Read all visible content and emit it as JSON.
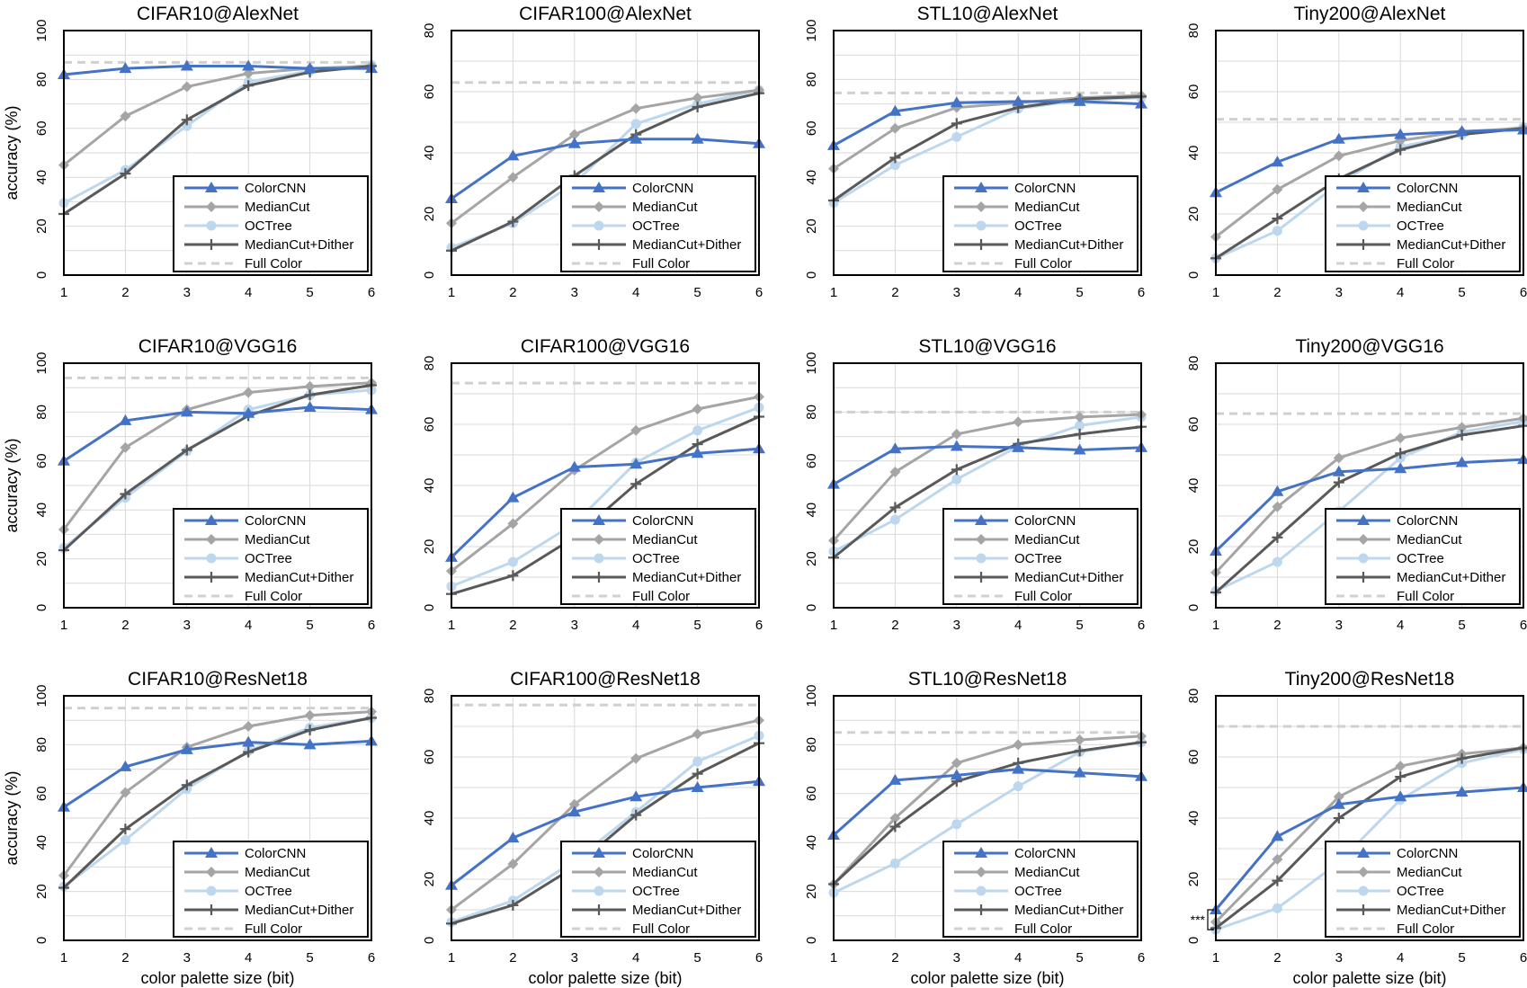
{
  "colors": {
    "ColorCNN": "#4472c4",
    "MedianCut": "#a5a5a5",
    "OCTree": "#bdd7ee",
    "MedianCutDither": "#595959",
    "FullColor": "#d0d0d0"
  },
  "x_axis_label": "color palette size (bit)",
  "y_axis_label": "accuracy (%)",
  "annotation": "***",
  "chart_data": [
    {
      "type": "line",
      "title": "CIFAR10@AlexNet",
      "xlabel": "",
      "ylabel": "accuracy (%)",
      "x": [
        1,
        2,
        3,
        4,
        5,
        6
      ],
      "ylim": [
        0,
        100
      ],
      "yticks": [
        0,
        20,
        40,
        60,
        80,
        100
      ],
      "legend": "bottom-right",
      "series": [
        {
          "name": "ColorCNN",
          "values": [
            82,
            84.5,
            85.5,
            85.5,
            84.5,
            84.5
          ]
        },
        {
          "name": "MedianCut",
          "values": [
            45,
            65,
            77,
            82.5,
            84.5,
            85.5
          ]
        },
        {
          "name": "OCTree",
          "values": [
            29.5,
            43,
            61,
            79,
            83.5,
            86
          ]
        },
        {
          "name": "MedianCut+Dither",
          "values": [
            25,
            41.5,
            63.5,
            77.5,
            83,
            85.5
          ]
        },
        {
          "name": "Full Color",
          "values": [
            87,
            87,
            87,
            87,
            87,
            87
          ]
        }
      ]
    },
    {
      "type": "line",
      "title": "CIFAR100@AlexNet",
      "xlabel": "",
      "ylabel": "",
      "x": [
        1,
        2,
        3,
        4,
        5,
        6
      ],
      "ylim": [
        0,
        80
      ],
      "yticks": [
        0,
        20,
        40,
        60,
        80
      ],
      "legend": "bottom-right",
      "series": [
        {
          "name": "ColorCNN",
          "values": [
            25,
            39,
            43,
            44.5,
            44.5,
            43
          ]
        },
        {
          "name": "MedianCut",
          "values": [
            17,
            32,
            46,
            54.5,
            58,
            60.5
          ]
        },
        {
          "name": "OCTree",
          "values": [
            9,
            17,
            30,
            49.5,
            56,
            60.5
          ]
        },
        {
          "name": "MedianCut+Dither",
          "values": [
            8,
            17.5,
            32.5,
            46,
            55,
            59.5
          ]
        },
        {
          "name": "Full Color",
          "values": [
            63,
            63,
            63,
            63,
            63,
            63
          ]
        }
      ]
    },
    {
      "type": "line",
      "title": "STL10@AlexNet",
      "xlabel": "",
      "ylabel": "",
      "x": [
        1,
        2,
        3,
        4,
        5,
        6
      ],
      "ylim": [
        0,
        100
      ],
      "yticks": [
        0,
        20,
        40,
        60,
        80,
        100
      ],
      "legend": "bottom-right",
      "series": [
        {
          "name": "ColorCNN",
          "values": [
            53,
            67,
            70.5,
            71,
            71,
            70
          ]
        },
        {
          "name": "MedianCut",
          "values": [
            43.5,
            60,
            68.5,
            70.5,
            72.5,
            73.5
          ]
        },
        {
          "name": "OCTree",
          "values": [
            29.5,
            45,
            56.5,
            68,
            71.5,
            72.5
          ]
        },
        {
          "name": "MedianCut+Dither",
          "values": [
            30.5,
            48,
            62,
            68.5,
            72,
            73
          ]
        },
        {
          "name": "Full Color",
          "values": [
            74.5,
            74.5,
            74.5,
            74.5,
            74.5,
            74.5
          ]
        }
      ]
    },
    {
      "type": "line",
      "title": "Tiny200@AlexNet",
      "xlabel": "",
      "ylabel": "",
      "x": [
        1,
        2,
        3,
        4,
        5,
        6
      ],
      "ylim": [
        0,
        80
      ],
      "yticks": [
        0,
        20,
        40,
        60,
        80
      ],
      "legend": "bottom-right",
      "series": [
        {
          "name": "ColorCNN",
          "values": [
            27,
            37,
            44.5,
            46,
            47,
            47.5
          ]
        },
        {
          "name": "MedianCut",
          "values": [
            12.5,
            28,
            39,
            44,
            47,
            48
          ]
        },
        {
          "name": "OCTree",
          "values": [
            5.5,
            14.5,
            30,
            42,
            46,
            48.5
          ]
        },
        {
          "name": "MedianCut+Dither",
          "values": [
            5.5,
            18.5,
            31.5,
            41,
            46,
            48
          ]
        },
        {
          "name": "Full Color",
          "values": [
            51,
            51,
            51,
            51,
            51,
            51
          ]
        }
      ]
    },
    {
      "type": "line",
      "title": "CIFAR10@VGG16",
      "xlabel": "",
      "ylabel": "accuracy (%)",
      "x": [
        1,
        2,
        3,
        4,
        5,
        6
      ],
      "ylim": [
        0,
        100
      ],
      "yticks": [
        0,
        20,
        40,
        60,
        80,
        100
      ],
      "legend": "bottom-right",
      "series": [
        {
          "name": "ColorCNN",
          "values": [
            60,
            76.5,
            80,
            79.5,
            82,
            81
          ]
        },
        {
          "name": "MedianCut",
          "values": [
            32,
            65.5,
            81,
            88,
            90.5,
            92
          ]
        },
        {
          "name": "OCTree",
          "values": [
            24.5,
            45,
            64,
            81,
            87,
            89
          ]
        },
        {
          "name": "MedianCut+Dither",
          "values": [
            23.5,
            46.5,
            64.5,
            78.5,
            87,
            91
          ]
        },
        {
          "name": "Full Color",
          "values": [
            94,
            94,
            94,
            94,
            94,
            94
          ]
        }
      ]
    },
    {
      "type": "line",
      "title": "CIFAR100@VGG16",
      "xlabel": "",
      "ylabel": "",
      "x": [
        1,
        2,
        3,
        4,
        5,
        6
      ],
      "ylim": [
        0,
        80
      ],
      "yticks": [
        0,
        20,
        40,
        60,
        80
      ],
      "legend": "bottom-right",
      "series": [
        {
          "name": "ColorCNN",
          "values": [
            16.5,
            36,
            46,
            47,
            50.5,
            52
          ]
        },
        {
          "name": "MedianCut",
          "values": [
            12,
            27.5,
            45,
            58,
            65,
            69
          ]
        },
        {
          "name": "OCTree",
          "values": [
            7,
            15,
            27.5,
            47.5,
            58,
            65.5
          ]
        },
        {
          "name": "MedianCut+Dither",
          "values": [
            4.5,
            10.5,
            23,
            40.5,
            53.5,
            62.5
          ]
        },
        {
          "name": "Full Color",
          "values": [
            73.5,
            73.5,
            73.5,
            73.5,
            73.5,
            73.5
          ]
        }
      ]
    },
    {
      "type": "line",
      "title": "STL10@VGG16",
      "xlabel": "",
      "ylabel": "",
      "x": [
        1,
        2,
        3,
        4,
        5,
        6
      ],
      "ylim": [
        0,
        100
      ],
      "yticks": [
        0,
        20,
        40,
        60,
        80,
        100
      ],
      "legend": "bottom-right",
      "series": [
        {
          "name": "ColorCNN",
          "values": [
            50.5,
            65,
            66,
            65.5,
            64.5,
            65.5
          ]
        },
        {
          "name": "MedianCut",
          "values": [
            27.5,
            55.5,
            71,
            76,
            78,
            79
          ]
        },
        {
          "name": "OCTree",
          "values": [
            23,
            36,
            52.5,
            66,
            74.5,
            78
          ]
        },
        {
          "name": "MedianCut+Dither",
          "values": [
            20.5,
            41,
            56.5,
            67,
            71,
            74
          ]
        },
        {
          "name": "Full Color",
          "values": [
            80,
            80,
            80,
            80,
            80,
            80
          ]
        }
      ]
    },
    {
      "type": "line",
      "title": "Tiny200@VGG16",
      "xlabel": "",
      "ylabel": "",
      "x": [
        1,
        2,
        3,
        4,
        5,
        6
      ],
      "ylim": [
        0,
        80
      ],
      "yticks": [
        0,
        20,
        40,
        60,
        80
      ],
      "legend": "bottom-right",
      "series": [
        {
          "name": "ColorCNN",
          "values": [
            18.5,
            38,
            44.5,
            45.5,
            47.5,
            48.5
          ]
        },
        {
          "name": "MedianCut",
          "values": [
            11.5,
            33,
            49,
            55.5,
            59,
            62
          ]
        },
        {
          "name": "OCTree",
          "values": [
            5.5,
            15,
            31.5,
            49,
            57.5,
            61
          ]
        },
        {
          "name": "MedianCut+Dither",
          "values": [
            5,
            23,
            41,
            50.5,
            56.5,
            59.5
          ]
        },
        {
          "name": "Full Color",
          "values": [
            63.5,
            63.5,
            63.5,
            63.5,
            63.5,
            63.5
          ]
        }
      ]
    },
    {
      "type": "line",
      "title": "CIFAR10@ResNet18",
      "xlabel": "color palette size (bit)",
      "ylabel": "accuracy (%)",
      "x": [
        1,
        2,
        3,
        4,
        5,
        6
      ],
      "ylim": [
        0,
        100
      ],
      "yticks": [
        0,
        20,
        40,
        60,
        80,
        100
      ],
      "legend": "bottom-right",
      "series": [
        {
          "name": "ColorCNN",
          "values": [
            54.5,
            71,
            78,
            81,
            80,
            81.5
          ]
        },
        {
          "name": "MedianCut",
          "values": [
            26.5,
            60.5,
            79,
            87.5,
            92,
            93.5
          ]
        },
        {
          "name": "OCTree",
          "values": [
            22,
            41,
            62,
            77.5,
            87,
            91
          ]
        },
        {
          "name": "MedianCut+Dither",
          "values": [
            21.5,
            45.5,
            63.5,
            77,
            86,
            91
          ]
        },
        {
          "name": "Full Color",
          "values": [
            95,
            95,
            95,
            95,
            95,
            95
          ]
        }
      ]
    },
    {
      "type": "line",
      "title": "CIFAR100@ResNet18",
      "xlabel": "color palette size (bit)",
      "ylabel": "",
      "x": [
        1,
        2,
        3,
        4,
        5,
        6
      ],
      "ylim": [
        0,
        80
      ],
      "yticks": [
        0,
        20,
        40,
        60,
        80
      ],
      "legend": "bottom-right",
      "series": [
        {
          "name": "ColorCNN",
          "values": [
            18,
            33.5,
            42,
            47,
            50,
            52
          ]
        },
        {
          "name": "MedianCut",
          "values": [
            10,
            25,
            44.5,
            59.5,
            67.5,
            72
          ]
        },
        {
          "name": "OCTree",
          "values": [
            6,
            13,
            26,
            42,
            58.5,
            67
          ]
        },
        {
          "name": "MedianCut+Dither",
          "values": [
            5.5,
            11.5,
            24,
            41,
            54.5,
            64.5
          ]
        },
        {
          "name": "Full Color",
          "values": [
            77,
            77,
            77,
            77,
            77,
            77
          ]
        }
      ]
    },
    {
      "type": "line",
      "title": "STL10@ResNet18",
      "xlabel": "color palette size (bit)",
      "ylabel": "",
      "x": [
        1,
        2,
        3,
        4,
        5,
        6
      ],
      "ylim": [
        0,
        100
      ],
      "yticks": [
        0,
        20,
        40,
        60,
        80,
        100
      ],
      "legend": "bottom-right",
      "series": [
        {
          "name": "ColorCNN",
          "values": [
            43,
            65.5,
            67.5,
            70,
            68.5,
            67
          ]
        },
        {
          "name": "MedianCut",
          "values": [
            23,
            50,
            72.5,
            80,
            82,
            83.5
          ]
        },
        {
          "name": "OCTree",
          "values": [
            19.5,
            31.5,
            47.5,
            63,
            77,
            81
          ]
        },
        {
          "name": "MedianCut+Dither",
          "values": [
            23,
            46.5,
            65,
            72.5,
            77.5,
            81
          ]
        },
        {
          "name": "Full Color",
          "values": [
            85,
            85,
            85,
            85,
            85,
            85
          ]
        }
      ]
    },
    {
      "type": "line",
      "title": "Tiny200@ResNet18",
      "xlabel": "color palette size (bit)",
      "ylabel": "",
      "x": [
        1,
        2,
        3,
        4,
        5,
        6
      ],
      "ylim": [
        0,
        80
      ],
      "yticks": [
        0,
        20,
        40,
        60,
        80
      ],
      "legend": "bottom-right",
      "annotation": "***",
      "series": [
        {
          "name": "ColorCNN",
          "values": [
            10,
            34,
            44.5,
            47,
            48.5,
            50
          ]
        },
        {
          "name": "MedianCut",
          "values": [
            6,
            26.5,
            47,
            57,
            61,
            63
          ]
        },
        {
          "name": "OCTree",
          "values": [
            3.5,
            10.5,
            25.5,
            46,
            58,
            62.5
          ]
        },
        {
          "name": "MedianCut+Dither",
          "values": [
            4,
            19.5,
            40,
            53.5,
            59.5,
            63
          ]
        },
        {
          "name": "Full Color",
          "values": [
            70,
            70,
            70,
            70,
            70,
            70
          ]
        }
      ]
    }
  ]
}
